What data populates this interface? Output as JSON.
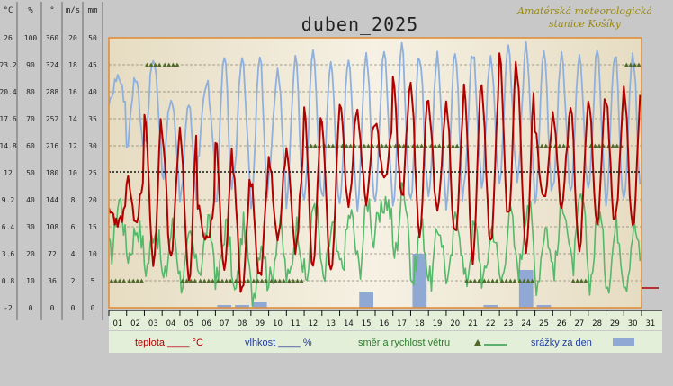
{
  "window": {
    "title": "duben_2025"
  },
  "station": {
    "line1": "Amatérská meteorologická",
    "line2": "stanice Košíky"
  },
  "colors": {
    "temperature": "#b00000",
    "humidity": "#8fb0dd",
    "wind": "#55b86a",
    "wind_dir": "#4e6b2a",
    "precip": "#8fa8d4",
    "plot_bg": "#efe7d2",
    "frame": "#e08a30",
    "legend_bg": "#e4efda"
  },
  "legend": {
    "temperature_label": "teplota ____ °C",
    "humidity_label": "vlhkost ____ %",
    "wind_label": "směr a rychlost větru",
    "precip_label": "srážky za den"
  },
  "chart_data": {
    "type": "line",
    "title": "duben_2025",
    "axis_headers": [
      "°C",
      "%",
      "°",
      "m/s",
      "mm"
    ],
    "scales": {
      "temperature_c": [
        "-2",
        "0.8",
        "3.6",
        "6.4",
        "9.2",
        "12",
        "14.8",
        "17.6",
        "20.4",
        "23.2",
        "26"
      ],
      "humidity_pct": [
        "0",
        "10",
        "20",
        "30",
        "40",
        "50",
        "60",
        "70",
        "80",
        "90",
        "100"
      ],
      "wind_dir_deg": [
        "0",
        "36",
        "72",
        "108",
        "144",
        "180",
        "216",
        "252",
        "288",
        "324",
        "360"
      ],
      "wind_speed_ms": [
        "0",
        "2",
        "4",
        "6",
        "8",
        "10",
        "12",
        "14",
        "16",
        "18",
        "20"
      ],
      "precip_mm": [
        "0",
        "5",
        "10",
        "15",
        "20",
        "25",
        "30",
        "35",
        "40",
        "45",
        "50"
      ]
    },
    "ylim_temperature": [
      -2,
      26
    ],
    "reference_line_temperature": 12,
    "days": [
      "01",
      "02",
      "03",
      "04",
      "05",
      "06",
      "07",
      "08",
      "09",
      "10",
      "11",
      "12",
      "13",
      "14",
      "15",
      "16",
      "17",
      "18",
      "19",
      "20",
      "21",
      "22",
      "23",
      "24",
      "25",
      "26",
      "27",
      "28",
      "29",
      "30",
      "31"
    ],
    "series": [
      {
        "name": "teplota",
        "unit": "°C",
        "daily_min": [
          6.5,
          7.0,
          2.5,
          3.0,
          1.0,
          5.0,
          1.5,
          -0.5,
          1.0,
          5.0,
          4.0,
          2.0,
          1.5,
          9.0,
          9.0,
          11.0,
          9.5,
          5.5,
          8.0,
          5.5,
          3.0,
          4.5,
          7.5,
          3.5,
          9.0,
          8.5,
          3.5,
          6.5,
          7.0,
          6.5
        ],
        "daily_max": [
          8.5,
          11.5,
          18.5,
          16.0,
          16.5,
          8.5,
          15.5,
          11.5,
          11.0,
          13.5,
          14.0,
          18.5,
          17.0,
          19.0,
          18.0,
          17.0,
          21.5,
          21.0,
          19.0,
          19.0,
          21.5,
          20.5,
          24.5,
          22.0,
          16.0,
          18.0,
          19.0,
          20.0,
          19.0,
          20.5
        ]
      },
      {
        "name": "vlhkost",
        "unit": "%",
        "daily_min": [
          76,
          60,
          60,
          48,
          40,
          56,
          38,
          46,
          36,
          48,
          38,
          40,
          40,
          40,
          38,
          42,
          36,
          42,
          40,
          38,
          48,
          46,
          48,
          46,
          40,
          44,
          42,
          42,
          40,
          40
        ],
        "daily_max": [
          86,
          86,
          92,
          78,
          76,
          84,
          92,
          94,
          92,
          88,
          92,
          94,
          92,
          94,
          94,
          94,
          96,
          94,
          94,
          94,
          94,
          94,
          96,
          96,
          94,
          94,
          94,
          94,
          94,
          94
        ]
      },
      {
        "name": "rychlost větru",
        "unit": "m/s",
        "daily_min": [
          4,
          4,
          3,
          2,
          2,
          3,
          2,
          1,
          1,
          2,
          2,
          2,
          2,
          3,
          3,
          6,
          4,
          2,
          2,
          2,
          2,
          2,
          2,
          3,
          2,
          3,
          3,
          2,
          2,
          2
        ],
        "daily_max": [
          8,
          6,
          6,
          6,
          5,
          6,
          6,
          6,
          5,
          6,
          6,
          8,
          6,
          7,
          8,
          8,
          9,
          6,
          6,
          7,
          6,
          6,
          7,
          8,
          6,
          8,
          8,
          7,
          6,
          6
        ]
      },
      {
        "name": "směr větru",
        "unit": "°",
        "daily_direction": [
          36,
          36,
          324,
          324,
          36,
          36,
          36,
          36,
          36,
          36,
          36,
          216,
          216,
          216,
          216,
          216,
          216,
          216,
          216,
          216,
          36,
          36,
          36,
          36,
          216,
          216,
          36,
          216,
          216,
          324
        ]
      },
      {
        "name": "srážky za den",
        "unit": "mm",
        "values": [
          0,
          0,
          0,
          0,
          0,
          0,
          0.5,
          0.5,
          1.0,
          0,
          0,
          0,
          0,
          0,
          3.0,
          0,
          0,
          10.0,
          0,
          0,
          0,
          0.5,
          0,
          7.0,
          0.5,
          0,
          0,
          0,
          0,
          0
        ]
      }
    ]
  }
}
